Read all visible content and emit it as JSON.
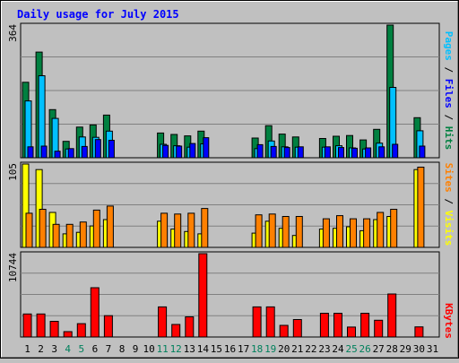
{
  "chart_data": [
    {
      "type": "bar",
      "title": "Daily usage for July 2015",
      "ylabel": [
        "Pages",
        "Files",
        "Hits"
      ],
      "ymax_label": "364",
      "ylim": [
        0,
        364
      ],
      "grid": true,
      "categories": [
        "1",
        "2",
        "3",
        "4",
        "5",
        "6",
        "7",
        "8",
        "9",
        "10",
        "11",
        "12",
        "13",
        "14",
        "15",
        "16",
        "17",
        "18",
        "19",
        "20",
        "21",
        "22",
        "23",
        "24",
        "25",
        "26",
        "27",
        "28",
        "29",
        "30",
        "31"
      ],
      "series": [
        {
          "name": "Hits",
          "color": "#008040",
          "values": [
            207,
            290,
            132,
            45,
            84,
            90,
            117,
            0,
            0,
            0,
            68,
            64,
            60,
            73,
            0,
            0,
            0,
            54,
            88,
            65,
            57,
            0,
            53,
            59,
            61,
            49,
            78,
            364,
            0,
            110,
            0
          ]
        },
        {
          "name": "Files",
          "color": "#00c0ff",
          "values": [
            156,
            225,
            108,
            24,
            57,
            56,
            73,
            0,
            0,
            0,
            37,
            33,
            29,
            38,
            0,
            0,
            0,
            25,
            46,
            30,
            29,
            0,
            29,
            33,
            27,
            24,
            40,
            193,
            0,
            74,
            0
          ]
        },
        {
          "name": "Pages",
          "color": "#0000ff",
          "values": [
            30,
            32,
            18,
            25,
            31,
            50,
            48,
            0,
            0,
            0,
            34,
            32,
            39,
            55,
            0,
            0,
            0,
            36,
            31,
            28,
            30,
            0,
            30,
            28,
            26,
            27,
            30,
            37,
            0,
            32,
            0
          ]
        }
      ]
    },
    {
      "type": "bar",
      "ylabel": [
        "Sites",
        "Visits"
      ],
      "ymax_label": "105",
      "ylim": [
        0,
        105
      ],
      "grid": true,
      "categories": [
        "1",
        "2",
        "3",
        "4",
        "5",
        "6",
        "7",
        "8",
        "9",
        "10",
        "11",
        "12",
        "13",
        "14",
        "15",
        "16",
        "17",
        "18",
        "19",
        "20",
        "21",
        "22",
        "23",
        "24",
        "25",
        "26",
        "27",
        "28",
        "29",
        "30",
        "31"
      ],
      "series": [
        {
          "name": "Visits",
          "color": "#ffff00",
          "values": [
            105,
            98,
            44,
            17,
            19,
            27,
            35,
            0,
            0,
            0,
            33,
            23,
            20,
            17,
            0,
            0,
            0,
            18,
            33,
            24,
            15,
            0,
            23,
            24,
            26,
            21,
            35,
            39,
            0,
            98,
            0
          ]
        },
        {
          "name": "Sites",
          "color": "#ff8000",
          "values": [
            43,
            48,
            29,
            29,
            32,
            47,
            52,
            0,
            0,
            0,
            43,
            42,
            43,
            49,
            0,
            0,
            0,
            41,
            42,
            39,
            39,
            0,
            36,
            40,
            36,
            36,
            44,
            48,
            0,
            101,
            0
          ]
        }
      ]
    },
    {
      "type": "bar",
      "ylabel": [
        "KBytes"
      ],
      "ymax_label": "10744",
      "ylim": [
        0,
        10744
      ],
      "grid": true,
      "categories": [
        "1",
        "2",
        "3",
        "4",
        "5",
        "6",
        "7",
        "8",
        "9",
        "10",
        "11",
        "12",
        "13",
        "14",
        "15",
        "16",
        "17",
        "18",
        "19",
        "20",
        "21",
        "22",
        "23",
        "24",
        "25",
        "26",
        "27",
        "28",
        "29",
        "30",
        "31"
      ],
      "series": [
        {
          "name": "KBytes",
          "color": "#ff0000",
          "values": [
            2970,
            2970,
            2020,
            690,
            1720,
            6350,
            2750,
            0,
            0,
            0,
            3880,
            1620,
            2600,
            10744,
            0,
            0,
            0,
            3880,
            3880,
            1500,
            2250,
            0,
            3060,
            3060,
            1280,
            3060,
            2160,
            5540,
            0,
            1300,
            0
          ]
        }
      ]
    }
  ],
  "weekend_days": [
    4,
    5,
    11,
    12,
    18,
    19,
    25,
    26
  ],
  "colors": {
    "background": "#c0c0c0",
    "title": "#0000ff",
    "day_label": "#000000",
    "weekend_label": "#00805c",
    "grid": "#808080",
    "bar_outline": "#000000"
  }
}
